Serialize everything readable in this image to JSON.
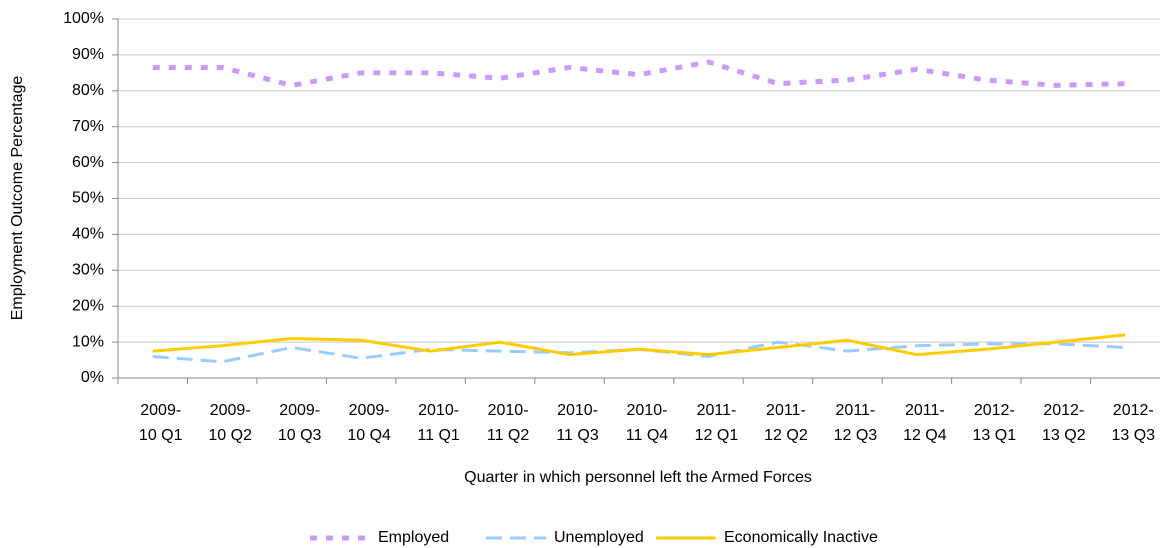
{
  "chart_data": {
    "type": "line",
    "y_label": "Employment Outcome Percentage",
    "x_label": "Quarter in which personnel left the Armed Forces",
    "categories": [
      "2009-10 Q1",
      "2009-10 Q2",
      "2009-10 Q3",
      "2009-10 Q4",
      "2010-11 Q1",
      "2010-11 Q2",
      "2010-11 Q3",
      "2010-11 Q4",
      "2011-12 Q1",
      "2011-12 Q2",
      "2011-12 Q3",
      "2011-12 Q4",
      "2012-13 Q1",
      "2012-13 Q2",
      "2012-13 Q3"
    ],
    "series": [
      {
        "name": "Employed",
        "color": "#cc99ff",
        "dash": "dotted",
        "values": [
          86.5,
          86.5,
          81.5,
          85,
          85,
          83.5,
          86.5,
          84.5,
          88,
          82,
          83,
          86,
          83,
          81.5,
          82
        ]
      },
      {
        "name": "Unemployed",
        "color": "#99ccff",
        "dash": "dashed",
        "values": [
          6,
          4.5,
          8.5,
          5.5,
          8,
          7.5,
          7,
          8,
          6,
          10,
          7.5,
          9,
          9.5,
          9.5,
          8.5
        ]
      },
      {
        "name": "Economically Inactive",
        "color": "#ffcc00",
        "dash": "solid",
        "values": [
          7.5,
          9,
          11,
          10.5,
          7.5,
          10,
          6.5,
          8,
          6.5,
          8.5,
          10.5,
          6.5,
          8,
          10,
          12
        ]
      }
    ],
    "ylim": [
      0,
      100
    ],
    "yticks": [
      {
        "value": 0,
        "label": "0%"
      },
      {
        "value": 10,
        "label": "10%"
      },
      {
        "value": 20,
        "label": "20%"
      },
      {
        "value": 30,
        "label": "30%"
      },
      {
        "value": 40,
        "label": "40%"
      },
      {
        "value": 50,
        "label": "50%"
      },
      {
        "value": 60,
        "label": "60%"
      },
      {
        "value": 70,
        "label": "70%"
      },
      {
        "value": 80,
        "label": "80%"
      },
      {
        "value": 90,
        "label": "90%"
      },
      {
        "value": 100,
        "label": "100%"
      }
    ],
    "grid": true,
    "legend": "bottom"
  }
}
